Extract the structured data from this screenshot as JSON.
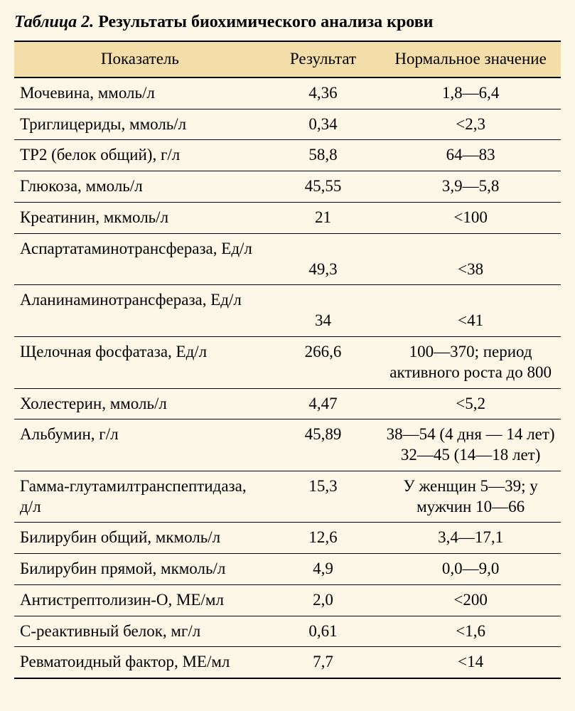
{
  "caption": {
    "prefix": "Таблица 2.",
    "title": "Результаты биохимического анализа крови"
  },
  "colors": {
    "page_background": "#fdf7e8",
    "header_background": "#f3dea9",
    "border_color": "#000000",
    "text_color": "#000000"
  },
  "table": {
    "type": "table",
    "font_family": "Georgia, Times New Roman, serif",
    "caption_fontsize": 24,
    "body_fontsize": 23,
    "col_widths_pct": [
      46,
      21,
      33
    ],
    "columns": [
      "Показатель",
      "Результат",
      "Нормальное значение"
    ],
    "rows": [
      {
        "param": "Мочевина, ммоль/л",
        "result": "4,36",
        "norm": "1,8—6,4",
        "multiline": false
      },
      {
        "param": "Триглицериды, ммоль/л",
        "result": "0,34",
        "norm": "<2,3",
        "multiline": false
      },
      {
        "param": "TP2 (белок общий), г/л",
        "result": "58,8",
        "norm": "64—83",
        "multiline": false
      },
      {
        "param": "Глюкоза, ммоль/л",
        "result": "45,55",
        "norm": "3,9—5,8",
        "multiline": false
      },
      {
        "param": "Креатинин, мкмоль/л",
        "result": "21",
        "norm": "<100",
        "multiline": false
      },
      {
        "param": "Аспартатаминотрансфераза, Ед/л",
        "result": "49,3",
        "norm": "<38",
        "multiline": true
      },
      {
        "param": "Аланинаминотрансфераза, Ед/л",
        "result": "34",
        "norm": "<41",
        "multiline": true
      },
      {
        "param": "Щелочная фосфатаза, Ед/л",
        "result": "266,6",
        "norm": "100—370; период активного роста до 800",
        "multiline": false
      },
      {
        "param": "Холестерин, ммоль/л",
        "result": "4,47",
        "norm": "<5,2",
        "multiline": false
      },
      {
        "param": "Альбумин, г/л",
        "result": "45,89",
        "norm": "38—54 (4 дня — 14 лет) 32—45 (14—18 лет)",
        "multiline": false
      },
      {
        "param": "Гамма-глутамилтранспептидаза, д/л",
        "result": "15,3",
        "norm": "У женщин 5—39; у мужчин 10—66",
        "multiline": false
      },
      {
        "param": "Билирубин общий, мкмоль/л",
        "result": "12,6",
        "norm": "3,4—17,1",
        "multiline": false
      },
      {
        "param": "Билирубин прямой, мкмоль/л",
        "result": "4,9",
        "norm": "0,0—9,0",
        "multiline": false
      },
      {
        "param": "Антистрептолизин-О, МЕ/мл",
        "result": "2,0",
        "norm": "<200",
        "multiline": false
      },
      {
        "param": "С-реактивный белок, мг/л",
        "result": "0,61",
        "norm": "<1,6",
        "multiline": false
      },
      {
        "param": "Ревматоидный фактор, МЕ/мл",
        "result": "7,7",
        "norm": "<14",
        "multiline": false
      }
    ]
  }
}
